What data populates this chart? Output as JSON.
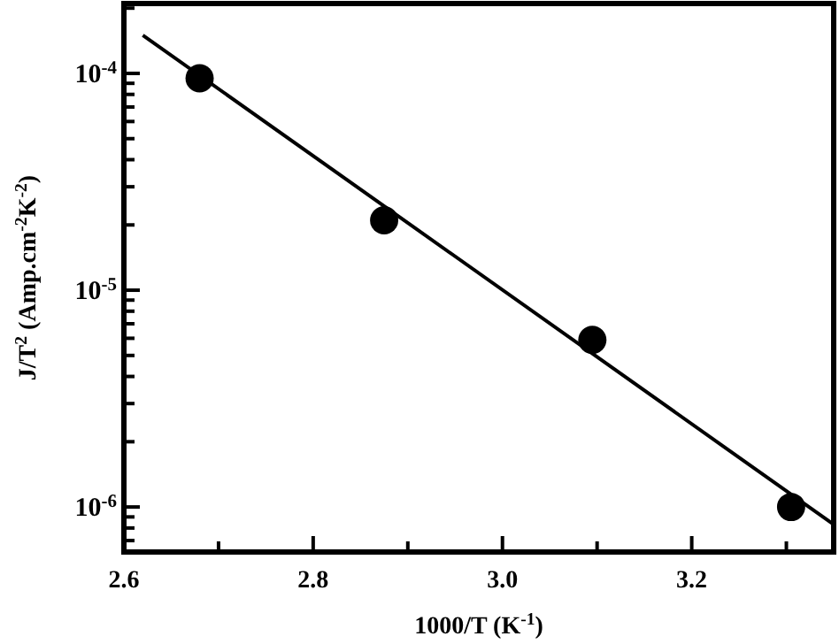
{
  "chart_data": {
    "type": "scatter",
    "xlabel": "1000/T (K$^{-1}$)",
    "ylabel": "J/T$^{2}$ (Amp.cm$^{-2}$K$^{-2}$)",
    "log": "y",
    "xlim": [
      2.6,
      3.35
    ],
    "ylim": [
      6.2e-07,
      0.00021
    ],
    "xticks": [
      2.6,
      {
        "value": 2.7,
        "label": null
      },
      2.8,
      {
        "value": 2.9,
        "label": null
      },
      {
        "value": 3,
        "label": "3.0"
      },
      {
        "value": 3.1,
        "label": null
      },
      3.2,
      {
        "value": 3.3,
        "label": null
      }
    ],
    "yticks": [
      {
        "value": 7e-07,
        "label": null
      },
      {
        "value": 8e-07,
        "label": null
      },
      {
        "value": 9e-07,
        "label": null
      },
      {
        "value": 1e-06,
        "label": "10$^{-6}$"
      },
      {
        "value": 2e-06,
        "label": null
      },
      {
        "value": 3e-06,
        "label": null
      },
      {
        "value": 4e-06,
        "label": null
      },
      {
        "value": 5e-06,
        "label": null
      },
      {
        "value": 6e-06,
        "label": null
      },
      {
        "value": 7e-06,
        "label": null
      },
      {
        "value": 8e-06,
        "label": null
      },
      {
        "value": 9e-06,
        "label": null
      },
      {
        "value": 1e-05,
        "label": "10$^{-5}$"
      },
      {
        "value": 2e-05,
        "label": null
      },
      {
        "value": 3e-05,
        "label": null
      },
      {
        "value": 4e-05,
        "label": null
      },
      {
        "value": 5e-05,
        "label": null
      },
      {
        "value": 6e-05,
        "label": null
      },
      {
        "value": 7e-05,
        "label": null
      },
      {
        "value": 8e-05,
        "label": null
      },
      {
        "value": 9e-05,
        "label": null
      },
      {
        "value": 0.0001,
        "label": "10$^{-4}$"
      },
      {
        "value": 0.0002,
        "label": null
      }
    ],
    "grid": false,
    "series": [
      {
        "marker": "circle",
        "color": "#000000",
        "x": [
          2.68,
          2.875,
          3.095,
          3.305
        ],
        "values": [
          9.5e-05,
          2.1e-05,
          5.9e-06,
          1e-06
        ]
      },
      {
        "type": "line",
        "color": "#000000",
        "x": [
          2.62,
          3.35
        ],
        "values": [
          0.00015,
          8.3e-07
        ]
      }
    ]
  }
}
